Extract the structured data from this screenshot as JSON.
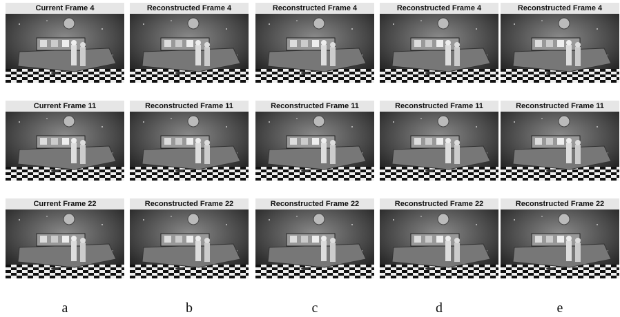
{
  "rows": [
    [
      "Current Frame 4",
      "Reconstructed Frame 4",
      "Reconstructed Frame 4",
      "Reconstructed Frame 4",
      "Reconstructed Frame 4"
    ],
    [
      "Current Frame 11",
      "Reconstructed Frame 11",
      "Reconstructed Frame 11",
      "Reconstructed Frame 11",
      "Reconstructed Frame 11"
    ],
    [
      "Current Frame 22",
      "Reconstructed Frame 22",
      "Reconstructed Frame 22",
      "Reconstructed Frame 22",
      "Reconstructed Frame 22"
    ]
  ],
  "column_labels": [
    "a",
    "b",
    "c",
    "d",
    "e"
  ]
}
